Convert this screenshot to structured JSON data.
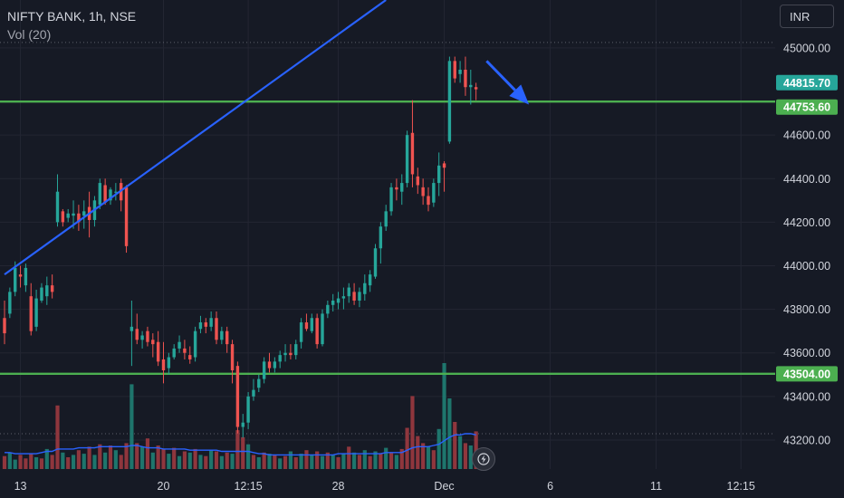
{
  "header": {
    "symbol_line": "NIFTY BANK, 1h, NSE",
    "volume_label": "Vol (20)"
  },
  "toolbar": {
    "currency": "INR"
  },
  "icons": {
    "lightning": "lightning-icon"
  },
  "colors": {
    "background": "#161a25",
    "up": "#26a69a",
    "down": "#ef5350",
    "up_volume": "#1f7f74",
    "down_volume": "#9c3a40",
    "support_line": "#4caf50",
    "trend_line": "#2962ff",
    "volume_ma": "#2962ff",
    "last_price_badge": "#26a69a",
    "level_badge": "#4caf50"
  },
  "chart_data": {
    "type": "candlestick",
    "title": "NIFTY BANK, 1h, NSE",
    "ylim": [
      43100,
      45220
    ],
    "y_ticks": [
      45000,
      44600,
      44400,
      44200,
      44000,
      43800,
      43600,
      43400,
      43200
    ],
    "y_tick_labels": [
      "45000.00",
      "44600.00",
      "44400.00",
      "44200.00",
      "44000.00",
      "43800.00",
      "43600.00",
      "43400.00",
      "43200.00"
    ],
    "x_tick_labels": [
      {
        "bar": 3,
        "label": "13"
      },
      {
        "bar": 30,
        "label": "20"
      },
      {
        "bar": 46,
        "label": "12:15"
      },
      {
        "bar": 63,
        "label": "28"
      },
      {
        "bar": 83,
        "label": "Dec"
      },
      {
        "bar": 103,
        "label": "6"
      },
      {
        "bar": 123,
        "label": "11"
      },
      {
        "bar": 139,
        "label": "12:15"
      }
    ],
    "price_labels": [
      {
        "value": 44815.7,
        "label": "44815.70",
        "kind": "last"
      },
      {
        "value": 44753.6,
        "label": "44753.60",
        "kind": "level"
      },
      {
        "value": 43504.0,
        "label": "43504.00",
        "kind": "level"
      }
    ],
    "horizontal_levels": [
      44753.6,
      43504.0
    ],
    "trend_line": {
      "from": {
        "bar": 0,
        "price": 43960
      },
      "to": {
        "bar": 72,
        "price": 45220
      }
    },
    "annotation_arrow": {
      "from": {
        "bar": 91,
        "price": 44940
      },
      "to": {
        "bar": 99,
        "price": 44740
      }
    },
    "candles": [
      [
        43760,
        43840,
        43640,
        43690
      ],
      [
        43780,
        43900,
        43760,
        43880
      ],
      [
        43880,
        44020,
        43860,
        43990
      ],
      [
        43960,
        44000,
        43900,
        43950
      ],
      [
        43910,
        44010,
        43880,
        43990
      ],
      [
        43860,
        43920,
        43680,
        43700
      ],
      [
        43720,
        43890,
        43700,
        43850
      ],
      [
        43840,
        43920,
        43830,
        43900
      ],
      [
        43860,
        43950,
        43820,
        43910
      ],
      [
        43910,
        43960,
        43850,
        43880
      ],
      [
        44200,
        44420,
        44180,
        44340
      ],
      [
        44250,
        44260,
        44180,
        44200
      ],
      [
        44220,
        44260,
        44200,
        44240
      ],
      [
        44230,
        44300,
        44170,
        44240
      ],
      [
        44240,
        44280,
        44160,
        44200
      ],
      [
        44230,
        44300,
        44170,
        44250
      ],
      [
        44270,
        44340,
        44130,
        44210
      ],
      [
        44210,
        44320,
        44180,
        44300
      ],
      [
        44280,
        44400,
        44260,
        44380
      ],
      [
        44370,
        44400,
        44280,
        44290
      ],
      [
        44300,
        44360,
        44280,
        44350
      ],
      [
        44340,
        44380,
        44300,
        44340
      ],
      [
        44380,
        44400,
        44250,
        44300
      ],
      [
        44360,
        44370,
        44060,
        44090
      ],
      [
        43700,
        43840,
        43540,
        43720
      ],
      [
        43710,
        43780,
        43640,
        43660
      ],
      [
        43660,
        43700,
        43620,
        43680
      ],
      [
        43700,
        43720,
        43630,
        43650
      ],
      [
        43660,
        43690,
        43580,
        43640
      ],
      [
        43650,
        43700,
        43540,
        43560
      ],
      [
        43570,
        43650,
        43460,
        43520
      ],
      [
        43530,
        43600,
        43500,
        43580
      ],
      [
        43580,
        43640,
        43570,
        43620
      ],
      [
        43620,
        43680,
        43600,
        43650
      ],
      [
        43620,
        43660,
        43570,
        43600
      ],
      [
        43590,
        43630,
        43550,
        43570
      ],
      [
        43580,
        43720,
        43560,
        43700
      ],
      [
        43710,
        43770,
        43690,
        43740
      ],
      [
        43740,
        43760,
        43690,
        43720
      ],
      [
        43720,
        43790,
        43700,
        43760
      ],
      [
        43760,
        43790,
        43640,
        43660
      ],
      [
        43660,
        43720,
        43640,
        43700
      ],
      [
        43700,
        43720,
        43600,
        43640
      ],
      [
        43640,
        43660,
        43460,
        43520
      ],
      [
        43540,
        43560,
        43230,
        43260
      ],
      [
        43260,
        43320,
        43210,
        43280
      ],
      [
        43280,
        43420,
        43250,
        43400
      ],
      [
        43400,
        43480,
        43380,
        43430
      ],
      [
        43440,
        43500,
        43420,
        43480
      ],
      [
        43480,
        43580,
        43460,
        43560
      ],
      [
        43560,
        43600,
        43510,
        43530
      ],
      [
        43530,
        43580,
        43510,
        43560
      ],
      [
        43560,
        43610,
        43530,
        43590
      ],
      [
        43590,
        43640,
        43560,
        43600
      ],
      [
        43600,
        43640,
        43570,
        43590
      ],
      [
        43590,
        43660,
        43570,
        43640
      ],
      [
        43650,
        43760,
        43620,
        43740
      ],
      [
        43740,
        43780,
        43700,
        43710
      ],
      [
        43700,
        43780,
        43690,
        43760
      ],
      [
        43760,
        43780,
        43620,
        43640
      ],
      [
        43640,
        43800,
        43630,
        43780
      ],
      [
        43780,
        43840,
        43760,
        43820
      ],
      [
        43820,
        43870,
        43790,
        43840
      ],
      [
        43830,
        43880,
        43800,
        43850
      ],
      [
        43850,
        43900,
        43800,
        43860
      ],
      [
        43860,
        43920,
        43830,
        43900
      ],
      [
        43880,
        43920,
        43820,
        43840
      ],
      [
        43840,
        43900,
        43810,
        43880
      ],
      [
        43870,
        43960,
        43840,
        43920
      ],
      [
        43910,
        43980,
        43880,
        43960
      ],
      [
        43950,
        44100,
        43940,
        44080
      ],
      [
        44080,
        44200,
        44010,
        44180
      ],
      [
        44180,
        44280,
        44160,
        44250
      ],
      [
        44250,
        44380,
        44230,
        44360
      ],
      [
        44360,
        44400,
        44300,
        44350
      ],
      [
        44340,
        44420,
        44280,
        44380
      ],
      [
        44380,
        44620,
        44360,
        44600
      ],
      [
        44610,
        44760,
        44360,
        44420
      ],
      [
        44410,
        44450,
        44330,
        44370
      ],
      [
        44360,
        44400,
        44280,
        44320
      ],
      [
        44320,
        44360,
        44250,
        44280
      ],
      [
        44290,
        44400,
        44270,
        44380
      ],
      [
        44380,
        44520,
        44320,
        44460
      ],
      [
        44470,
        44480,
        44340,
        44450
      ],
      [
        44570,
        44960,
        44560,
        44940
      ],
      [
        44940,
        44960,
        44840,
        44860
      ],
      [
        44880,
        44940,
        44840,
        44900
      ],
      [
        44900,
        44960,
        44780,
        44820
      ],
      [
        44820,
        44900,
        44740,
        44830
      ],
      [
        44820,
        44840,
        44760,
        44810
      ]
    ],
    "volume": [
      {
        "value": 0.11,
        "up": false
      },
      {
        "value": 0.14,
        "up": true
      },
      {
        "value": 0.08,
        "up": true
      },
      {
        "value": 0.12,
        "up": false
      },
      {
        "value": 0.09,
        "up": false
      },
      {
        "value": 0.13,
        "up": false
      },
      {
        "value": 0.1,
        "up": true
      },
      {
        "value": 0.09,
        "up": false
      },
      {
        "value": 0.17,
        "up": true
      },
      {
        "value": 0.12,
        "up": false
      },
      {
        "value": 0.54,
        "up": false
      },
      {
        "value": 0.14,
        "up": true
      },
      {
        "value": 0.1,
        "up": false
      },
      {
        "value": 0.12,
        "up": true
      },
      {
        "value": 0.16,
        "up": false
      },
      {
        "value": 0.13,
        "up": true
      },
      {
        "value": 0.19,
        "up": false
      },
      {
        "value": 0.12,
        "up": true
      },
      {
        "value": 0.21,
        "up": false
      },
      {
        "value": 0.14,
        "up": true
      },
      {
        "value": 0.2,
        "up": false
      },
      {
        "value": 0.16,
        "up": true
      },
      {
        "value": 0.12,
        "up": false
      },
      {
        "value": 0.22,
        "up": false
      },
      {
        "value": 0.72,
        "up": true
      },
      {
        "value": 0.22,
        "up": false
      },
      {
        "value": 0.19,
        "up": true
      },
      {
        "value": 0.26,
        "up": false
      },
      {
        "value": 0.14,
        "up": true
      },
      {
        "value": 0.2,
        "up": false
      },
      {
        "value": 0.17,
        "up": false
      },
      {
        "value": 0.13,
        "up": true
      },
      {
        "value": 0.18,
        "up": false
      },
      {
        "value": 0.11,
        "up": true
      },
      {
        "value": 0.15,
        "up": false
      },
      {
        "value": 0.14,
        "up": true
      },
      {
        "value": 0.17,
        "up": false
      },
      {
        "value": 0.12,
        "up": true
      },
      {
        "value": 0.11,
        "up": false
      },
      {
        "value": 0.16,
        "up": true
      },
      {
        "value": 0.15,
        "up": false
      },
      {
        "value": 0.11,
        "up": true
      },
      {
        "value": 0.14,
        "up": false
      },
      {
        "value": 0.13,
        "up": true
      },
      {
        "value": 0.33,
        "up": false
      },
      {
        "value": 0.27,
        "up": false
      },
      {
        "value": 0.21,
        "up": true
      },
      {
        "value": 0.12,
        "up": false
      },
      {
        "value": 0.1,
        "up": true
      },
      {
        "value": 0.14,
        "up": false
      },
      {
        "value": 0.13,
        "up": true
      },
      {
        "value": 0.12,
        "up": false
      },
      {
        "value": 0.09,
        "up": true
      },
      {
        "value": 0.11,
        "up": false
      },
      {
        "value": 0.15,
        "up": true
      },
      {
        "value": 0.1,
        "up": false
      },
      {
        "value": 0.13,
        "up": true
      },
      {
        "value": 0.16,
        "up": false
      },
      {
        "value": 0.12,
        "up": true
      },
      {
        "value": 0.15,
        "up": false
      },
      {
        "value": 0.11,
        "up": true
      },
      {
        "value": 0.14,
        "up": false
      },
      {
        "value": 0.12,
        "up": true
      },
      {
        "value": 0.1,
        "up": false
      },
      {
        "value": 0.13,
        "up": true
      },
      {
        "value": 0.19,
        "up": false
      },
      {
        "value": 0.14,
        "up": true
      },
      {
        "value": 0.12,
        "up": false
      },
      {
        "value": 0.16,
        "up": true
      },
      {
        "value": 0.11,
        "up": false
      },
      {
        "value": 0.15,
        "up": true
      },
      {
        "value": 0.13,
        "up": false
      },
      {
        "value": 0.18,
        "up": true
      },
      {
        "value": 0.14,
        "up": false
      },
      {
        "value": 0.12,
        "up": true
      },
      {
        "value": 0.17,
        "up": false
      },
      {
        "value": 0.35,
        "up": false
      },
      {
        "value": 0.62,
        "up": false
      },
      {
        "value": 0.28,
        "up": false
      },
      {
        "value": 0.22,
        "up": false
      },
      {
        "value": 0.19,
        "up": true
      },
      {
        "value": 0.16,
        "up": false
      },
      {
        "value": 0.34,
        "up": true
      },
      {
        "value": 0.9,
        "up": true
      },
      {
        "value": 0.6,
        "up": true
      },
      {
        "value": 0.4,
        "up": false
      },
      {
        "value": 0.28,
        "up": true
      },
      {
        "value": 0.22,
        "up": false
      },
      {
        "value": 0.2,
        "up": true
      },
      {
        "value": 0.32,
        "up": false
      }
    ],
    "volume_ma": [
      0.14,
      0.14,
      0.13,
      0.13,
      0.13,
      0.13,
      0.13,
      0.14,
      0.15,
      0.15,
      0.17,
      0.17,
      0.17,
      0.17,
      0.18,
      0.18,
      0.18,
      0.18,
      0.19,
      0.19,
      0.19,
      0.19,
      0.19,
      0.19,
      0.2,
      0.2,
      0.19,
      0.18,
      0.18,
      0.18,
      0.17,
      0.17,
      0.17,
      0.17,
      0.17,
      0.16,
      0.16,
      0.16,
      0.16,
      0.16,
      0.16,
      0.15,
      0.15,
      0.15,
      0.15,
      0.15,
      0.15,
      0.14,
      0.13,
      0.13,
      0.12,
      0.12,
      0.12,
      0.12,
      0.12,
      0.12,
      0.12,
      0.12,
      0.12,
      0.12,
      0.12,
      0.12,
      0.12,
      0.13,
      0.13,
      0.13,
      0.13,
      0.13,
      0.13,
      0.13,
      0.13,
      0.13,
      0.14,
      0.14,
      0.14,
      0.14,
      0.16,
      0.18,
      0.19,
      0.19,
      0.19,
      0.2,
      0.21,
      0.24,
      0.27,
      0.29,
      0.29,
      0.3,
      0.3,
      0.29
    ]
  }
}
